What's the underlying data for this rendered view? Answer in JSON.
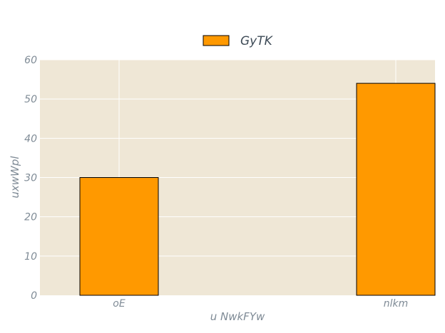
{
  "chart_data": {
    "type": "bar",
    "title": "",
    "xlabel": "u NwkFYw",
    "ylabel": "uxwWpl",
    "categories": [
      "oE",
      "nlkm"
    ],
    "series": [
      {
        "name": "GyTK",
        "values": [
          30,
          54
        ],
        "color": "#ff9900",
        "edge_color": "#000000"
      }
    ],
    "ylim": [
      0,
      60
    ],
    "yticks": [
      0,
      10,
      20,
      30,
      40,
      50,
      60
    ],
    "grid": true,
    "legend_position": "top-center",
    "plot_background": "#efe7d6",
    "grid_color": "#ffffff",
    "text_color": "#7f8b96"
  }
}
